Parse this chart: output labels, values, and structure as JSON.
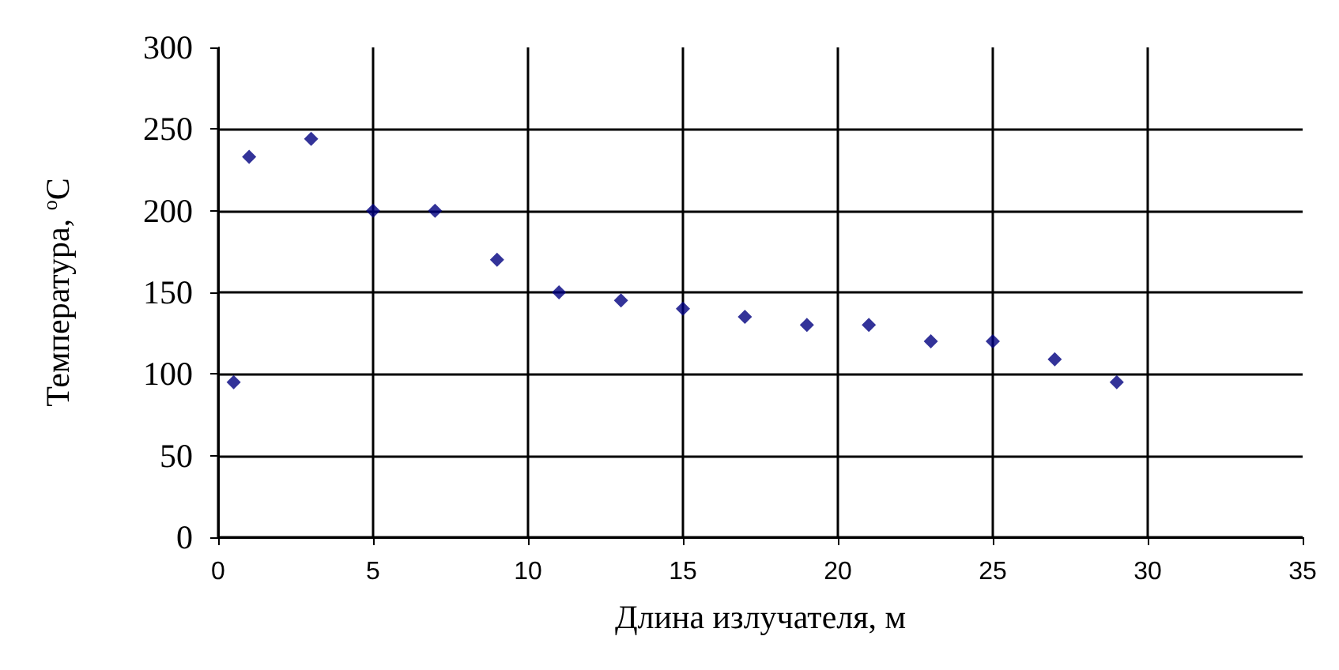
{
  "chart_data": {
    "type": "scatter",
    "xlabel": "Длина излучателя, м",
    "ylabel": "Температура, $^{o}$C",
    "x": [
      0.5,
      1,
      3,
      5,
      7,
      9,
      11,
      13,
      15,
      17,
      19,
      21,
      23,
      25,
      27,
      29
    ],
    "series": [
      {
        "color": "#000080",
        "values": [
          95,
          233,
          244,
          200,
          200,
          170,
          150,
          145,
          140,
          135,
          130,
          130,
          120,
          120,
          109,
          95
        ]
      }
    ],
    "xlim": [
      0,
      35
    ],
    "xticks": [
      0,
      5,
      10,
      15,
      20,
      25,
      30,
      35
    ],
    "ylim": [
      0,
      300
    ],
    "yticks": [
      0,
      50,
      100,
      150,
      200,
      250,
      300
    ],
    "grid": true,
    "marker": "diamond"
  }
}
